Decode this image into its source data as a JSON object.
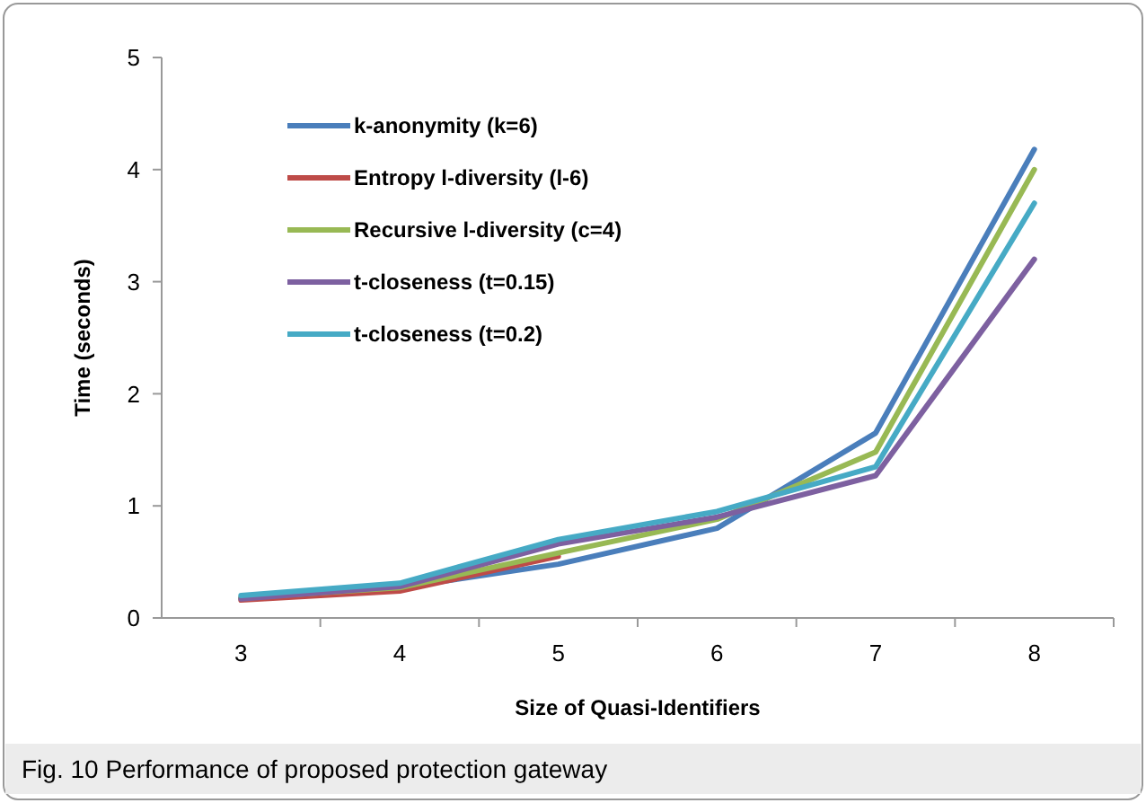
{
  "chart_data": {
    "type": "line",
    "xlabel": "Size of Quasi-Identifiers",
    "ylabel": "Time (seconds)",
    "categories": [
      "3",
      "4",
      "5",
      "6",
      "7",
      "8"
    ],
    "series": [
      {
        "name": "k-anonymity (k=6)",
        "color": "#4a7ebb",
        "values": [
          0.18,
          0.27,
          0.48,
          0.8,
          1.65,
          4.18
        ]
      },
      {
        "name": "Entropy l-diversity (l-6)",
        "color": "#be4b48",
        "values": [
          0.16,
          0.24,
          0.55,
          null,
          null,
          null
        ]
      },
      {
        "name": "Recursive l-diversity (c=4)",
        "color": "#98b954",
        "values": [
          0.18,
          0.27,
          0.58,
          0.88,
          1.48,
          4.0
        ]
      },
      {
        "name": "t-closeness (t=0.15)",
        "color": "#7d60a0",
        "values": [
          0.17,
          0.28,
          0.66,
          0.9,
          1.27,
          3.2
        ]
      },
      {
        "name": "t-closeness (t=0.2)",
        "color": "#46aac5",
        "values": [
          0.2,
          0.31,
          0.7,
          0.95,
          1.35,
          3.7
        ]
      }
    ],
    "ylim": [
      0,
      5
    ],
    "yticks": [
      0,
      1,
      2,
      3,
      4,
      5
    ],
    "grid": false,
    "legend": "top left",
    "marker": "none",
    "line_style": "solid",
    "annotations": [
      "Fig. 10 Performance of proposed protection gateway"
    ]
  }
}
